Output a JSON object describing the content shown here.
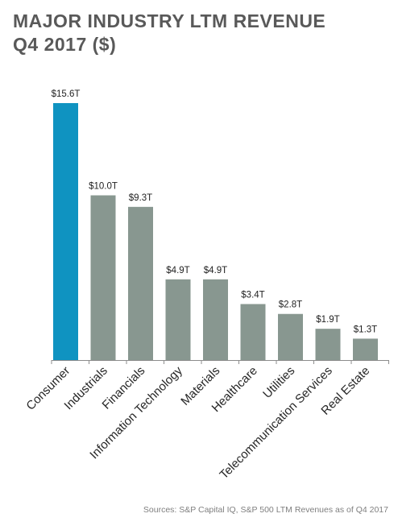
{
  "title_line1": "MAJOR INDUSTRY LTM REVENUE",
  "title_line2": "Q4 2017 ($)",
  "source": "Sources: S&P Capital IQ, S&P 500 LTM Revenues as of Q4 2017",
  "colors": {
    "highlight": "#0f93c1",
    "bar": "#889790",
    "axis": "#8c8c8c",
    "title": "#595959"
  },
  "chart_data": {
    "type": "bar",
    "title": "MAJOR INDUSTRY LTM REVENUE Q4 2017 ($)",
    "xlabel": "",
    "ylabel": "",
    "ylim": [
      0,
      15.6
    ],
    "grid": false,
    "unit": "T",
    "categories": [
      "Consumer",
      "Industrials",
      "Financials",
      "Information Technology",
      "Materials",
      "Healthcare",
      "Utilities",
      "Telecommunication Services",
      "Real Estate"
    ],
    "values": [
      15.6,
      10.0,
      9.3,
      4.9,
      4.9,
      3.4,
      2.8,
      1.9,
      1.3
    ],
    "data_labels": [
      "$15.6T",
      "$10.0T",
      "$9.3T",
      "$4.9T",
      "$4.9T",
      "$3.4T",
      "$2.8T",
      "$1.9T",
      "$1.3T"
    ]
  }
}
